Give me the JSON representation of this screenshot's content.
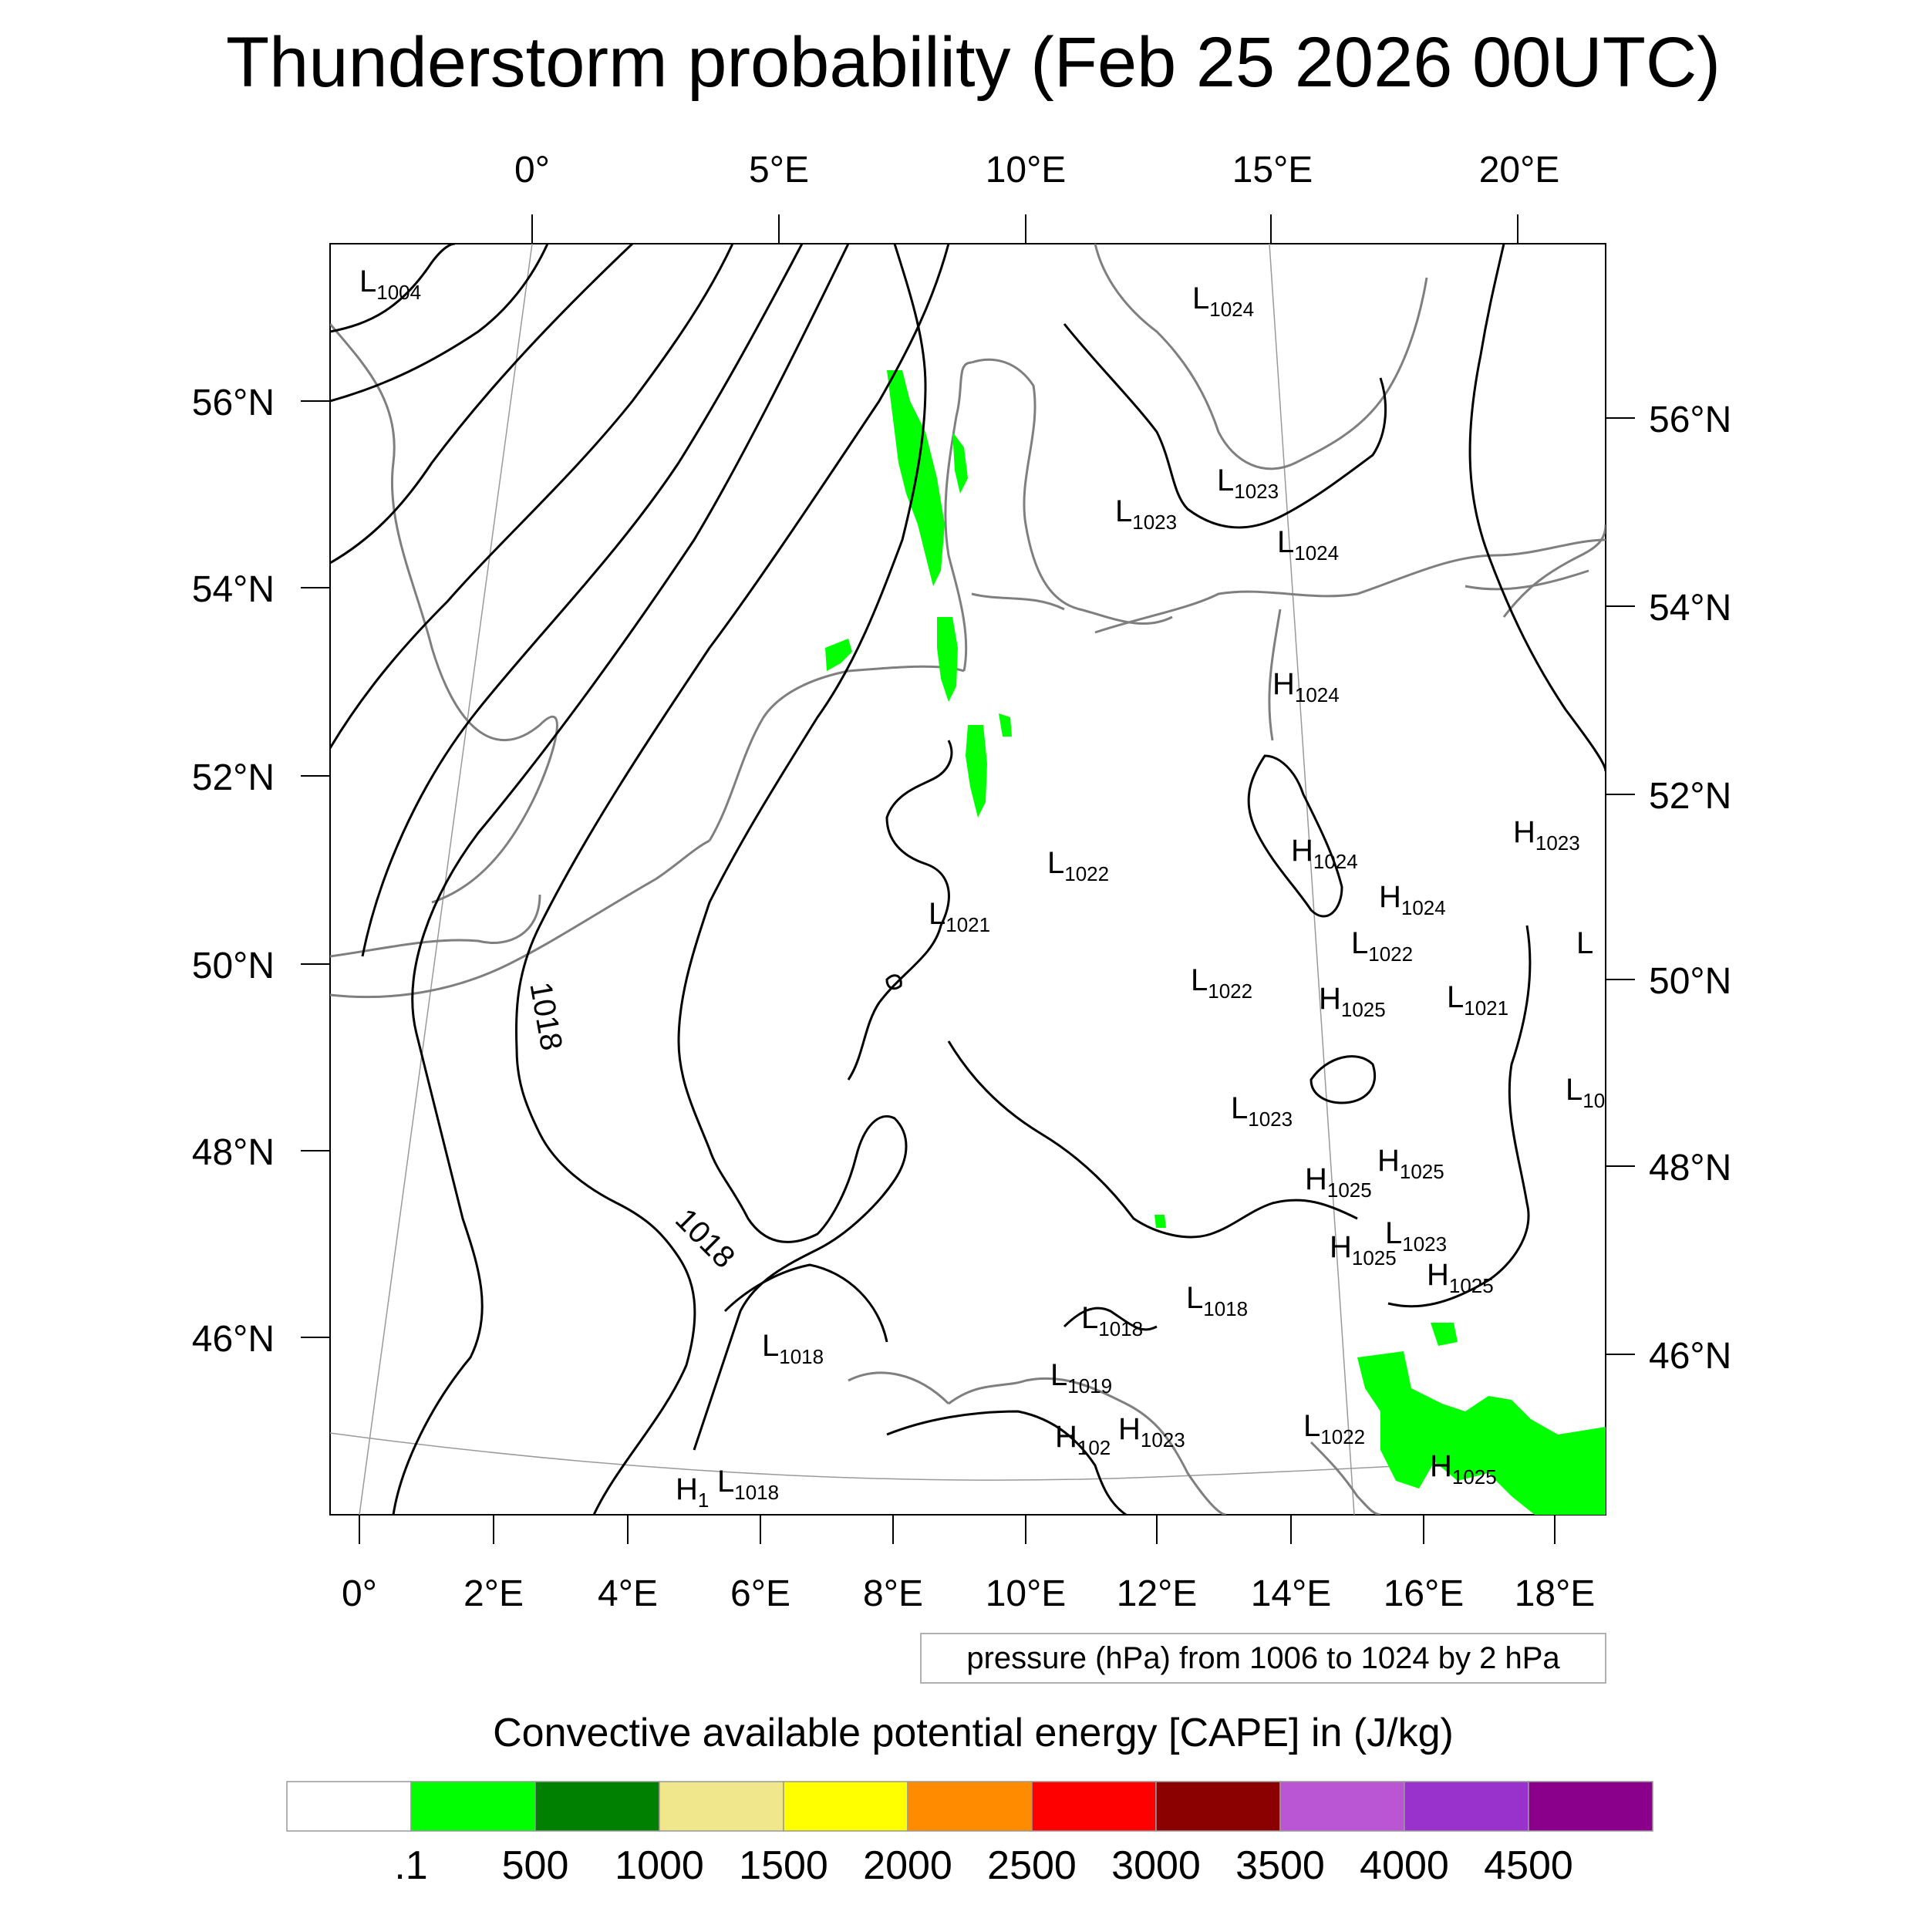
{
  "title": "Thunderstorm probability (Feb 25 2026 00UTC)",
  "top_lon_labels": [
    "0°",
    "5°E",
    "10°E",
    "15°E",
    "20°E"
  ],
  "bottom_lon_labels": [
    "0°",
    "2°E",
    "4°E",
    "6°E",
    "8°E",
    "10°E",
    "12°E",
    "14°E",
    "16°E",
    "18°E"
  ],
  "left_lat_labels": [
    "56°N",
    "54°N",
    "52°N",
    "50°N",
    "48°N",
    "46°N"
  ],
  "right_lat_labels": [
    "56°N",
    "54°N",
    "52°N",
    "50°N",
    "48°N",
    "46°N"
  ],
  "pressure_note": "pressure (hPa) from 1006 to 1024 by 2 hPa",
  "contour_labels": [
    "1018",
    "1018"
  ],
  "pressure_centers": [
    {
      "type": "L",
      "value": "1004"
    },
    {
      "type": "L",
      "value": "1024"
    },
    {
      "type": "L",
      "value": "1023"
    },
    {
      "type": "L",
      "value": "1023"
    },
    {
      "type": "L",
      "value": "1024"
    },
    {
      "type": "H",
      "value": "1024"
    },
    {
      "type": "H",
      "value": "1024"
    },
    {
      "type": "L",
      "value": "1022"
    },
    {
      "type": "H",
      "value": "1023"
    },
    {
      "type": "L",
      "value": "1021"
    },
    {
      "type": "H",
      "value": "1024"
    },
    {
      "type": "L",
      "value": "1022"
    },
    {
      "type": "L",
      "value": ""
    },
    {
      "type": "L",
      "value": "1022"
    },
    {
      "type": "H",
      "value": "1025"
    },
    {
      "type": "L",
      "value": "1021"
    },
    {
      "type": "L",
      "value": "10"
    },
    {
      "type": "L",
      "value": "1023"
    },
    {
      "type": "H",
      "value": "1025"
    },
    {
      "type": "H",
      "value": "1025"
    },
    {
      "type": "L",
      "value": "1023"
    },
    {
      "type": "H",
      "value": "1025"
    },
    {
      "type": "H",
      "value": "1025"
    },
    {
      "type": "L",
      "value": "1018"
    },
    {
      "type": "L",
      "value": "1018"
    },
    {
      "type": "L",
      "value": "1018"
    },
    {
      "type": "L",
      "value": "1019"
    },
    {
      "type": "H",
      "value": "102"
    },
    {
      "type": "H",
      "value": "1023"
    },
    {
      "type": "L",
      "value": "1022"
    },
    {
      "type": "H",
      "value": "1025"
    },
    {
      "type": "H",
      "value": "1"
    },
    {
      "type": "L",
      "value": "1018"
    }
  ],
  "legend": {
    "title": "Convective available potential energy [CAPE] in (J/kg)",
    "colors": [
      "#ffffff",
      "#00ff00",
      "#008000",
      "#f0e68c",
      "#ffff00",
      "#ff8c00",
      "#ff0000",
      "#8b0000",
      "#ba55d3",
      "#9932cc",
      "#8b008b"
    ],
    "labels": [
      ".1",
      "500",
      "1000",
      "1500",
      "2000",
      "2500",
      "3000",
      "3500",
      "4000",
      "4500"
    ]
  }
}
